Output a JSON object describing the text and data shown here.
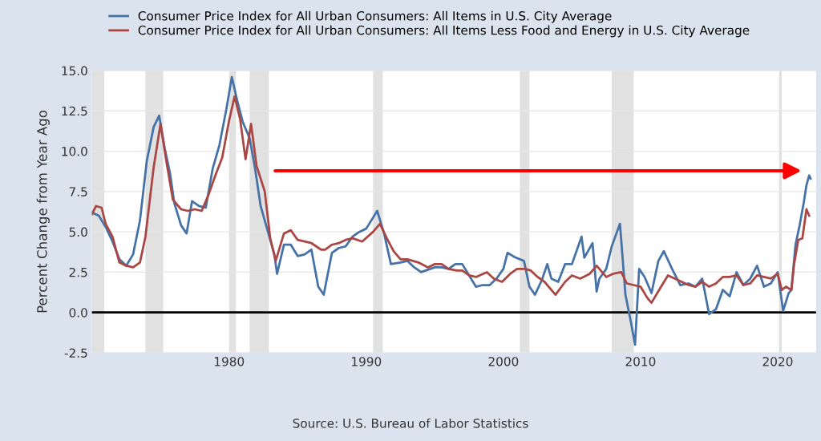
{
  "chart_data": {
    "type": "line",
    "ylabel": "Percent Change from Year Ago",
    "xlim": [
      1970,
      2022.8
    ],
    "xticks": [
      1980,
      1990,
      2000,
      2010,
      2020
    ],
    "ylim": [
      -2.5,
      15
    ],
    "yticks": [
      {
        "value": -2.5,
        "label": "-2.5"
      },
      {
        "value": 0,
        "label": "0.0"
      },
      {
        "value": 2.5,
        "label": "2.5"
      },
      {
        "value": 5,
        "label": "5.0"
      },
      {
        "value": 7.5,
        "label": "7.5"
      },
      {
        "value": 10,
        "label": "10.0"
      },
      {
        "value": 12.5,
        "label": "12.5"
      },
      {
        "value": 15,
        "label": "15.0"
      }
    ],
    "grid": "y",
    "legend": "top",
    "line_style": "solid",
    "marker": "none",
    "series": [
      {
        "name": "Consumer Price Index for All Urban Consumers: All Items in U.S. City Average",
        "color": "#4572a7",
        "x": [
          1970.0,
          1970.5,
          1971.0,
          1971.5,
          1972.0,
          1972.5,
          1973.0,
          1973.5,
          1974.0,
          1974.5,
          1974.9,
          1975.3,
          1975.7,
          1976.0,
          1976.5,
          1976.9,
          1977.3,
          1977.8,
          1978.3,
          1978.8,
          1979.3,
          1979.8,
          1980.2,
          1980.6,
          1981.0,
          1981.5,
          1981.9,
          1982.3,
          1982.8,
          1983.3,
          1983.5,
          1984.0,
          1984.5,
          1985.0,
          1985.5,
          1986.0,
          1986.5,
          1986.9,
          1987.5,
          1988.0,
          1988.5,
          1989.0,
          1989.5,
          1990.0,
          1990.8,
          1991.3,
          1991.8,
          1992.5,
          1993.0,
          1993.5,
          1994.0,
          1995.0,
          1995.5,
          1996.0,
          1996.5,
          1997.0,
          1997.5,
          1998.0,
          1998.5,
          1999.0,
          1999.5,
          2000.0,
          2000.3,
          2000.9,
          2001.5,
          2001.9,
          2002.3,
          2002.8,
          2003.2,
          2003.5,
          2004.0,
          2004.5,
          2005.0,
          2005.7,
          2005.9,
          2006.5,
          2006.8,
          2007.0,
          2007.5,
          2007.9,
          2008.5,
          2008.9,
          2009.3,
          2009.6,
          2009.9,
          2010.3,
          2010.8,
          2011.3,
          2011.7,
          2012.3,
          2012.9,
          2013.5,
          2014.0,
          2014.5,
          2015.0,
          2015.5,
          2016.0,
          2016.5,
          2017.0,
          2017.5,
          2018.0,
          2018.5,
          2019.0,
          2019.5,
          2020.0,
          2020.4,
          2020.8,
          2021.0,
          2021.3,
          2021.6,
          2021.9,
          2022.1,
          2022.3,
          2022.4
        ],
        "values": [
          6.2,
          6.0,
          5.3,
          4.4,
          3.3,
          2.9,
          3.6,
          5.7,
          9.4,
          11.5,
          12.2,
          10.2,
          8.6,
          6.8,
          5.4,
          4.9,
          6.9,
          6.6,
          6.5,
          8.9,
          10.4,
          12.6,
          14.6,
          13.1,
          11.8,
          10.8,
          8.9,
          6.6,
          5.1,
          3.6,
          2.4,
          4.2,
          4.2,
          3.5,
          3.6,
          3.9,
          1.6,
          1.1,
          3.7,
          4.0,
          4.1,
          4.7,
          5.0,
          5.2,
          6.3,
          4.9,
          3.0,
          3.1,
          3.2,
          2.8,
          2.5,
          2.8,
          2.8,
          2.7,
          3.0,
          3.0,
          2.3,
          1.6,
          1.7,
          1.7,
          2.1,
          2.7,
          3.7,
          3.4,
          3.2,
          1.6,
          1.1,
          2.0,
          3.0,
          2.1,
          1.9,
          3.0,
          3.0,
          4.7,
          3.4,
          4.3,
          1.3,
          2.1,
          2.7,
          4.1,
          5.5,
          1.1,
          -0.6,
          -2.0,
          2.7,
          2.2,
          1.2,
          3.2,
          3.8,
          2.7,
          1.7,
          1.8,
          1.6,
          2.1,
          -0.1,
          0.2,
          1.4,
          1.0,
          2.5,
          1.7,
          2.1,
          2.9,
          1.6,
          1.8,
          2.5,
          0.1,
          1.2,
          1.4,
          4.2,
          5.4,
          6.8,
          7.9,
          8.5,
          8.3
        ]
      },
      {
        "name": "Consumer Price Index for All Urban Consumers: All Items Less Food and Energy in U.S. City Average",
        "color": "#aa4643",
        "x": [
          1970.0,
          1970.3,
          1970.7,
          1971.0,
          1971.5,
          1972.0,
          1972.5,
          1973.0,
          1973.5,
          1973.9,
          1974.5,
          1975.0,
          1975.4,
          1975.9,
          1976.5,
          1977.0,
          1977.5,
          1978.0,
          1978.5,
          1979.0,
          1979.5,
          1980.0,
          1980.4,
          1980.8,
          1981.2,
          1981.6,
          1982.0,
          1982.6,
          1983.0,
          1983.4,
          1984.0,
          1984.5,
          1985.0,
          1985.5,
          1986.0,
          1986.7,
          1987.0,
          1987.5,
          1988.0,
          1988.5,
          1989.0,
          1989.7,
          1990.5,
          1991.0,
          1991.5,
          1992.0,
          1992.5,
          1993.0,
          1993.8,
          1994.5,
          1995.0,
          1995.5,
          1996.0,
          1996.6,
          1997.0,
          1997.5,
          1998.0,
          1998.8,
          1999.3,
          1999.9,
          2000.5,
          2001.0,
          2001.6,
          2002.0,
          2002.5,
          2003.0,
          2003.8,
          2004.5,
          2005.0,
          2005.6,
          2006.3,
          2006.8,
          2007.5,
          2008.0,
          2008.6,
          2009.0,
          2009.5,
          2010.0,
          2010.5,
          2010.8,
          2011.5,
          2012.0,
          2012.5,
          2013.0,
          2013.5,
          2014.0,
          2014.5,
          2015.0,
          2015.5,
          2016.0,
          2016.5,
          2017.0,
          2017.5,
          2018.0,
          2018.5,
          2019.0,
          2019.5,
          2020.0,
          2020.3,
          2020.6,
          2021.0,
          2021.2,
          2021.5,
          2021.8,
          2022.1,
          2022.3
        ],
        "values": [
          6.1,
          6.6,
          6.5,
          5.5,
          4.7,
          3.1,
          2.9,
          2.8,
          3.1,
          4.7,
          9.0,
          11.7,
          9.5,
          7.0,
          6.4,
          6.3,
          6.4,
          6.3,
          7.3,
          8.5,
          9.6,
          11.9,
          13.4,
          12.0,
          9.5,
          11.7,
          9.1,
          7.5,
          4.6,
          3.2,
          4.9,
          5.1,
          4.5,
          4.4,
          4.3,
          3.9,
          3.9,
          4.2,
          4.3,
          4.5,
          4.6,
          4.4,
          5.0,
          5.5,
          4.6,
          3.8,
          3.3,
          3.3,
          3.1,
          2.8,
          3.0,
          3.0,
          2.7,
          2.6,
          2.6,
          2.3,
          2.2,
          2.5,
          2.1,
          1.9,
          2.4,
          2.7,
          2.7,
          2.6,
          2.2,
          1.9,
          1.1,
          1.9,
          2.3,
          2.1,
          2.4,
          2.9,
          2.2,
          2.4,
          2.5,
          1.8,
          1.7,
          1.6,
          0.9,
          0.6,
          1.6,
          2.3,
          2.1,
          1.9,
          1.7,
          1.6,
          1.9,
          1.6,
          1.8,
          2.2,
          2.2,
          2.3,
          1.7,
          1.8,
          2.3,
          2.2,
          2.1,
          2.4,
          1.4,
          1.6,
          1.4,
          3.0,
          4.5,
          4.6,
          6.4,
          6.0
        ]
      }
    ],
    "bands": [
      {
        "axis": "x",
        "from": 1970.0,
        "to": 1970.9,
        "color": "#e1e1e1"
      },
      {
        "axis": "x",
        "from": 1973.9,
        "to": 1975.2,
        "color": "#e1e1e1"
      },
      {
        "axis": "x",
        "from": 1980.0,
        "to": 1980.5,
        "color": "#e1e1e1"
      },
      {
        "axis": "x",
        "from": 1981.5,
        "to": 1982.9,
        "color": "#e1e1e1"
      },
      {
        "axis": "x",
        "from": 1990.5,
        "to": 1991.2,
        "color": "#e1e1e1"
      },
      {
        "axis": "x",
        "from": 2001.2,
        "to": 2001.9,
        "color": "#e1e1e1"
      },
      {
        "axis": "x",
        "from": 2007.9,
        "to": 2009.5,
        "color": "#e1e1e1"
      },
      {
        "axis": "x",
        "from": 2020.1,
        "to": 2020.3,
        "color": "#e1e1e1"
      }
    ],
    "ref_lines": [
      {
        "axis": "y",
        "value": 0,
        "color": "#000000",
        "line_style": "solid"
      }
    ],
    "annotations": [
      "Source: U.S. Bureau of Labor Statistics"
    ]
  }
}
